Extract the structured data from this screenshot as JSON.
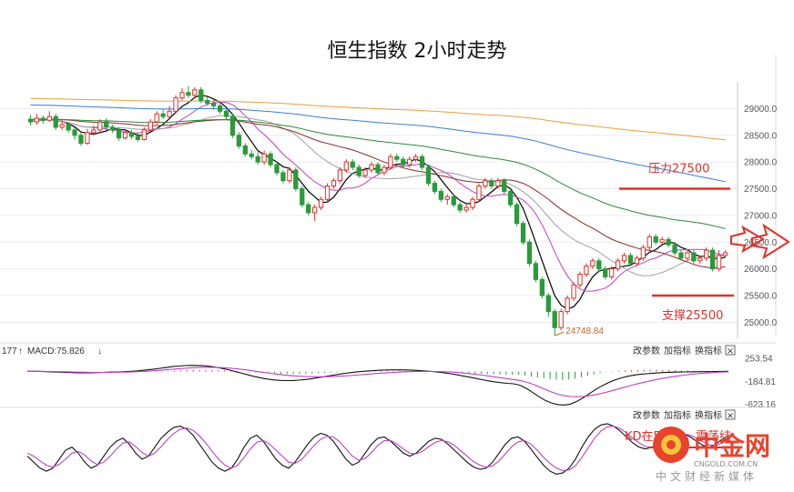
{
  "chart_data": {
    "type": "candlestick",
    "title": "恒生指数 2小时走势",
    "interval": "2小时",
    "y_ticks": [
      "29000.0",
      "28500.0",
      "28000.0",
      "27500.0",
      "27000.0",
      "26500.0",
      "26000.0",
      "25500.0",
      "25000.0"
    ],
    "y_tick_values": [
      29000,
      28500,
      28000,
      27500,
      27000,
      26500,
      26000,
      25500,
      25000
    ],
    "ylim": [
      24700,
      29500
    ],
    "candles": [
      [
        28800,
        28750,
        28880,
        28680
      ],
      [
        28750,
        28820,
        28900,
        28700
      ],
      [
        28820,
        28780,
        28870,
        28720
      ],
      [
        28780,
        28850,
        28950,
        28750
      ],
      [
        28850,
        28650,
        28900,
        28600
      ],
      [
        28650,
        28700,
        28780,
        28600
      ],
      [
        28700,
        28600,
        28750,
        28550
      ],
      [
        28600,
        28500,
        28650,
        28420
      ],
      [
        28500,
        28350,
        28560,
        28300
      ],
      [
        28350,
        28550,
        28620,
        28320
      ],
      [
        28550,
        28600,
        28680,
        28500
      ],
      [
        28600,
        28750,
        28800,
        28560
      ],
      [
        28750,
        28650,
        28820,
        28600
      ],
      [
        28650,
        28600,
        28700,
        28540
      ],
      [
        28600,
        28450,
        28650,
        28400
      ],
      [
        28450,
        28550,
        28600,
        28420
      ],
      [
        28550,
        28480,
        28600,
        28420
      ],
      [
        28480,
        28420,
        28550,
        28380
      ],
      [
        28420,
        28600,
        28650,
        28400
      ],
      [
        28600,
        28750,
        28800,
        28560
      ],
      [
        28750,
        28900,
        28950,
        28700
      ],
      [
        28900,
        28850,
        28980,
        28800
      ],
      [
        28850,
        28950,
        29050,
        28820
      ],
      [
        28950,
        29200,
        29250,
        28900
      ],
      [
        29200,
        29300,
        29380,
        29150
      ],
      [
        29300,
        29250,
        29420,
        29200
      ],
      [
        29250,
        29350,
        29400,
        29200
      ],
      [
        29350,
        29150,
        29400,
        29100
      ],
      [
        29150,
        29100,
        29220,
        29050
      ],
      [
        29100,
        29050,
        29180,
        28980
      ],
      [
        29050,
        28950,
        29100,
        28900
      ],
      [
        28950,
        28850,
        29000,
        28800
      ],
      [
        28850,
        28500,
        28900,
        28450
      ],
      [
        28500,
        28300,
        28560,
        28250
      ],
      [
        28300,
        28150,
        28350,
        28100
      ],
      [
        28150,
        28100,
        28220,
        28050
      ],
      [
        28100,
        28000,
        28180,
        27950
      ],
      [
        28000,
        28150,
        28220,
        27950
      ],
      [
        28150,
        27950,
        28200,
        27900
      ],
      [
        27950,
        27800,
        28000,
        27750
      ],
      [
        27800,
        27650,
        27850,
        27600
      ],
      [
        27650,
        27850,
        27900,
        27600
      ],
      [
        27850,
        27500,
        27900,
        27450
      ],
      [
        27500,
        27200,
        27550,
        27150
      ],
      [
        27200,
        27050,
        27250,
        27000
      ],
      [
        27050,
        27150,
        27200,
        26900
      ],
      [
        27150,
        27300,
        27350,
        27100
      ],
      [
        27300,
        27550,
        27600,
        27250
      ],
      [
        27550,
        27650,
        27700,
        27500
      ],
      [
        27650,
        27850,
        27900,
        27600
      ],
      [
        27850,
        28000,
        28050,
        27800
      ],
      [
        28000,
        27900,
        28050,
        27850
      ],
      [
        27900,
        27750,
        27950,
        27700
      ],
      [
        27750,
        27850,
        27900,
        27700
      ],
      [
        27850,
        27950,
        28000,
        27800
      ],
      [
        27950,
        27800,
        28000,
        27750
      ],
      [
        27800,
        27900,
        27950,
        27750
      ],
      [
        27900,
        28100,
        28150,
        27850
      ],
      [
        28100,
        28050,
        28150,
        28000
      ],
      [
        28050,
        27950,
        28100,
        27900
      ],
      [
        27950,
        28050,
        28100,
        27900
      ],
      [
        28050,
        28100,
        28150,
        28000
      ],
      [
        28100,
        27900,
        28150,
        27850
      ],
      [
        27900,
        27600,
        27950,
        27550
      ],
      [
        27600,
        27450,
        27650,
        27400
      ],
      [
        27450,
        27300,
        27500,
        27250
      ],
      [
        27300,
        27350,
        27400,
        27200
      ],
      [
        27350,
        27200,
        27400,
        27150
      ],
      [
        27200,
        27100,
        27250,
        27050
      ],
      [
        27100,
        27150,
        27200,
        27050
      ],
      [
        27150,
        27300,
        27350,
        27100
      ],
      [
        27300,
        27550,
        27600,
        27250
      ],
      [
        27550,
        27650,
        27700,
        27500
      ],
      [
        27650,
        27550,
        27700,
        27500
      ],
      [
        27550,
        27650,
        27700,
        27500
      ],
      [
        27650,
        27450,
        27700,
        27400
      ],
      [
        27450,
        27200,
        27500,
        27150
      ],
      [
        27200,
        26850,
        27250,
        26800
      ],
      [
        26850,
        26500,
        26900,
        26450
      ],
      [
        26500,
        26100,
        26550,
        26050
      ],
      [
        26100,
        25800,
        26150,
        25750
      ],
      [
        25800,
        25500,
        25850,
        25450
      ],
      [
        25500,
        25200,
        25550,
        25100
      ],
      [
        25200,
        24900,
        25250,
        24749
      ],
      [
        24900,
        25200,
        25250,
        24850
      ],
      [
        25200,
        25450,
        25500,
        25150
      ],
      [
        25450,
        25700,
        25750,
        25400
      ],
      [
        25700,
        25900,
        25950,
        25650
      ],
      [
        25900,
        26050,
        26100,
        25850
      ],
      [
        26050,
        26150,
        26200,
        26000
      ],
      [
        26150,
        26000,
        26200,
        25950
      ],
      [
        26000,
        25850,
        26050,
        25800
      ],
      [
        25850,
        26000,
        26050,
        25800
      ],
      [
        26000,
        26150,
        26200,
        25950
      ],
      [
        26150,
        26250,
        26300,
        26100
      ],
      [
        26250,
        26100,
        26300,
        26050
      ],
      [
        26100,
        26200,
        26250,
        26050
      ],
      [
        26200,
        26400,
        26450,
        26150
      ],
      [
        26400,
        26600,
        26650,
        26350
      ],
      [
        26600,
        26500,
        26650,
        26450
      ],
      [
        26500,
        26550,
        26600,
        26450
      ],
      [
        26550,
        26450,
        26600,
        26400
      ],
      [
        26450,
        26300,
        26500,
        26250
      ],
      [
        26300,
        26200,
        26350,
        26150
      ],
      [
        26200,
        26300,
        26350,
        26150
      ],
      [
        26300,
        26150,
        26350,
        26100
      ],
      [
        26150,
        26200,
        26250,
        26100
      ],
      [
        26200,
        26350,
        26400,
        26150
      ],
      [
        26350,
        26000,
        26400,
        25950
      ],
      [
        26000,
        26250,
        26350,
        25950
      ],
      [
        26250,
        26300,
        26350,
        26200
      ]
    ],
    "lowest_marker": "24748.84",
    "resistance": {
      "label": "压力27500",
      "value": 27500
    },
    "support": {
      "label": "支撑25500",
      "value": 25500
    },
    "moving_averages": [
      {
        "color": "#000000",
        "period": 5
      },
      {
        "color": "#c040c0",
        "period": 10
      },
      {
        "color": "#a0a0a0",
        "period": 20
      },
      {
        "color": "#8b2a2a",
        "period": 30
      },
      {
        "color": "#2a8a3a",
        "period": 60
      },
      {
        "color": "#3a7fd0",
        "period": 120
      },
      {
        "color": "#e6a03a",
        "period": 240
      }
    ],
    "up_color": "#e0302a",
    "down_color": "#2a9a3a",
    "macd": {
      "label": "MACD:75.826",
      "label_prefix": "177",
      "ticks": [
        "253.54",
        "-184.81",
        "-623.16"
      ],
      "tick_values": [
        253.54,
        -184.81,
        -623.16
      ],
      "range": [
        -650,
        290
      ],
      "hist": [
        20,
        18,
        14,
        10,
        6,
        2,
        -2,
        -6,
        -10,
        -12,
        -10,
        -8,
        -6,
        -4,
        -2,
        0,
        2,
        4,
        8,
        14,
        22,
        32,
        44,
        58,
        72,
        84,
        92,
        96,
        94,
        88,
        78,
        62,
        42,
        18,
        -8,
        -34,
        -58,
        -80,
        -98,
        -112,
        -122,
        -128,
        -130,
        -126,
        -118,
        -106,
        -92,
        -76,
        -58,
        -40,
        -22,
        -6,
        8,
        20,
        30,
        38,
        44,
        48,
        50,
        50,
        48,
        44,
        38,
        30,
        20,
        8,
        -6,
        -22,
        -40,
        -58,
        -78,
        -98,
        -116,
        -132,
        -146,
        -156,
        -162,
        -164,
        -180,
        -220,
        -270,
        -320,
        -370,
        -410,
        -440,
        -450,
        -430,
        -380,
        -310,
        -230,
        -150,
        -80,
        -20,
        20,
        50,
        70,
        84,
        92,
        96,
        98,
        96,
        92,
        86,
        78,
        70,
        62,
        56,
        52,
        50,
        48,
        46,
        44
      ],
      "dif": [
        10,
        8,
        5,
        0,
        -5,
        -10,
        -14,
        -18,
        -22,
        -24,
        -22,
        -18,
        -14,
        -10,
        -6,
        -2,
        4,
        12,
        22,
        34,
        48,
        64,
        80,
        96,
        108,
        116,
        120,
        118,
        112,
        100,
        82,
        58,
        30,
        0,
        -32,
        -64,
        -94,
        -120,
        -142,
        -158,
        -168,
        -172,
        -170,
        -162,
        -150,
        -134,
        -116,
        -96,
        -76,
        -56,
        -38,
        -22,
        -8,
        4,
        14,
        22,
        28,
        32,
        34,
        34,
        32,
        28,
        22,
        14,
        4,
        -8,
        -22,
        -40,
        -60,
        -82,
        -106,
        -130,
        -154,
        -176,
        -196,
        -212,
        -224,
        -232,
        -260,
        -320,
        -400,
        -480,
        -550,
        -600,
        -630,
        -640,
        -620,
        -570,
        -500,
        -420,
        -340,
        -270,
        -210,
        -160,
        -120,
        -90,
        -68,
        -52,
        -40,
        -30,
        -22,
        -16,
        -12,
        -8,
        -6,
        -4,
        -2,
        0,
        0,
        2,
        4,
        6
      ],
      "dea": [
        8,
        8,
        7,
        5,
        3,
        0,
        -3,
        -6,
        -9,
        -12,
        -14,
        -15,
        -15,
        -14,
        -12,
        -10,
        -7,
        -3,
        2,
        8,
        16,
        25,
        35,
        46,
        56,
        65,
        73,
        79,
        82,
        83,
        81,
        76,
        68,
        57,
        43,
        27,
        10,
        -7,
        -24,
        -40,
        -55,
        -68,
        -79,
        -87,
        -93,
        -97,
        -99,
        -98,
        -95,
        -90,
        -83,
        -75,
        -66,
        -57,
        -47,
        -38,
        -29,
        -21,
        -14,
        -8,
        -3,
        1,
        3,
        4,
        4,
        2,
        -2,
        -8,
        -16,
        -26,
        -38,
        -52,
        -67,
        -83,
        -100,
        -117,
        -134,
        -150,
        -170,
        -200,
        -240,
        -290,
        -340,
        -390,
        -430,
        -460,
        -476,
        -480,
        -474,
        -460,
        -440,
        -414,
        -384,
        -350,
        -316,
        -282,
        -250,
        -220,
        -192,
        -166,
        -142,
        -120,
        -100,
        -82,
        -66,
        -52,
        -40,
        -30,
        -22,
        -14,
        -8,
        -4
      ]
    },
    "kdj": {
      "label": "KD在5",
      "k": [
        40,
        30,
        20,
        15,
        20,
        35,
        50,
        55,
        45,
        30,
        20,
        25,
        40,
        55,
        65,
        70,
        60,
        45,
        35,
        40,
        55,
        70,
        80,
        88,
        90,
        85,
        75,
        60,
        45,
        30,
        20,
        15,
        20,
        35,
        55,
        70,
        75,
        65,
        50,
        35,
        25,
        20,
        30,
        45,
        60,
        72,
        78,
        75,
        65,
        50,
        35,
        25,
        30,
        45,
        60,
        70,
        72,
        65,
        55,
        45,
        40,
        45,
        55,
        65,
        70,
        68,
        60,
        50,
        40,
        30,
        22,
        18,
        20,
        30,
        45,
        60,
        70,
        72,
        65,
        52,
        38,
        25,
        15,
        10,
        12,
        20,
        35,
        55,
        72,
        85,
        92,
        94,
        90,
        82,
        72,
        62,
        55,
        52,
        55,
        62,
        70,
        76,
        80,
        78,
        72,
        65,
        58,
        55,
        60,
        68,
        74
      ],
      "d": [
        45,
        40,
        32,
        25,
        22,
        26,
        35,
        45,
        48,
        42,
        32,
        26,
        30,
        40,
        52,
        62,
        64,
        56,
        46,
        40,
        45,
        56,
        68,
        78,
        85,
        87,
        83,
        74,
        62,
        48,
        35,
        25,
        20,
        25,
        38,
        52,
        63,
        66,
        60,
        50,
        40,
        30,
        28,
        34,
        46,
        58,
        68,
        73,
        72,
        64,
        52,
        40,
        33,
        36,
        46,
        58,
        66,
        66,
        60,
        52,
        45,
        44,
        48,
        56,
        63,
        66,
        64,
        58,
        49,
        40,
        31,
        25,
        22,
        24,
        32,
        44,
        56,
        64,
        66,
        60,
        50,
        38,
        28,
        20,
        16,
        17,
        24,
        38,
        54,
        70,
        82,
        89,
        90,
        86,
        79,
        70,
        62,
        56,
        54,
        57,
        63,
        70,
        75,
        77,
        75,
        70,
        64,
        59,
        58,
        62,
        68
      ]
    }
  },
  "indicator_buttons": [
    "改参数",
    "加指标",
    "换指标"
  ],
  "close_glyph": "×",
  "watermark": {
    "text": "中金网",
    "sub": "CNGOLD.COM.CN",
    "line": "中文财经新媒体",
    "overlap": "震荡结"
  }
}
